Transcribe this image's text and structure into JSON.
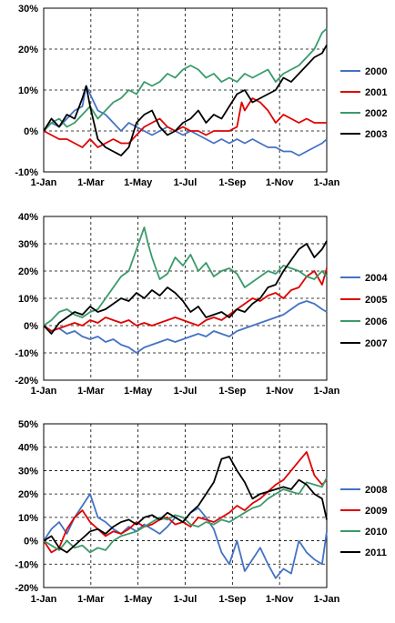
{
  "chart_data": [
    {
      "type": "line",
      "x_ticks": [
        "1-Jan",
        "1-Mar",
        "1-May",
        "1-Jul",
        "1-Sep",
        "1-Nov",
        "1-Jan"
      ],
      "y_ticks": [
        "-10%",
        "0%",
        "10%",
        "20%",
        "30%"
      ],
      "ylim": [
        -10,
        30
      ],
      "grid": true,
      "legend_position": "right",
      "series": [
        {
          "name": "2000",
          "color": "#4472C4",
          "x": [
            0,
            10,
            20,
            30,
            40,
            50,
            55,
            60,
            70,
            80,
            90,
            100,
            110,
            120,
            130,
            140,
            150,
            160,
            170,
            180,
            190,
            200,
            210,
            220,
            230,
            240,
            250,
            260,
            270,
            280,
            290,
            300,
            310,
            320,
            330,
            340,
            350,
            360,
            366
          ],
          "y": [
            0,
            2,
            1,
            3,
            5,
            6,
            11,
            9,
            5,
            4,
            2,
            0,
            2,
            1,
            0,
            -1,
            0,
            1,
            0,
            -1,
            0,
            -1,
            -2,
            -3,
            -2,
            -3,
            -2,
            -3,
            -2,
            -3,
            -4,
            -4,
            -5,
            -5,
            -6,
            -5,
            -4,
            -3,
            -2
          ]
        },
        {
          "name": "2001",
          "color": "#E00000",
          "x": [
            0,
            10,
            20,
            30,
            40,
            50,
            60,
            70,
            80,
            90,
            100,
            110,
            120,
            130,
            140,
            150,
            160,
            170,
            180,
            190,
            200,
            210,
            220,
            230,
            240,
            250,
            256,
            260,
            270,
            280,
            290,
            300,
            310,
            320,
            330,
            340,
            350,
            360,
            366
          ],
          "y": [
            0,
            -1,
            -2,
            -2,
            -3,
            -4,
            -2,
            -4,
            -3,
            -2,
            -3,
            -3,
            -1,
            1,
            2,
            3,
            1,
            0,
            1,
            0,
            0,
            -1,
            0,
            0,
            0,
            1,
            7,
            5,
            8,
            7,
            5,
            2,
            4,
            3,
            2,
            3,
            2,
            2,
            2
          ]
        },
        {
          "name": "2002",
          "color": "#3A9A6A",
          "x": [
            0,
            10,
            20,
            30,
            40,
            50,
            60,
            70,
            80,
            90,
            100,
            110,
            120,
            130,
            140,
            150,
            160,
            170,
            180,
            190,
            200,
            210,
            220,
            230,
            240,
            250,
            260,
            270,
            280,
            290,
            300,
            310,
            320,
            330,
            340,
            350,
            360,
            366
          ],
          "y": [
            0,
            2,
            3,
            1,
            2,
            4,
            6,
            3,
            5,
            7,
            8,
            10,
            9,
            12,
            11,
            12,
            14,
            13,
            15,
            16,
            15,
            13,
            14,
            12,
            13,
            12,
            14,
            13,
            14,
            15,
            12,
            14,
            15,
            16,
            18,
            20,
            24,
            25
          ]
        },
        {
          "name": "2003",
          "color": "#000000",
          "x": [
            0,
            10,
            20,
            30,
            40,
            50,
            55,
            60,
            70,
            80,
            90,
            100,
            110,
            120,
            130,
            140,
            150,
            160,
            170,
            180,
            190,
            200,
            210,
            220,
            230,
            240,
            250,
            260,
            270,
            280,
            290,
            300,
            310,
            320,
            330,
            340,
            350,
            360,
            366
          ],
          "y": [
            0,
            3,
            1,
            4,
            3,
            8,
            11,
            6,
            -2,
            -4,
            -5,
            -6,
            -4,
            2,
            4,
            5,
            1,
            -1,
            0,
            2,
            3,
            5,
            2,
            4,
            3,
            6,
            9,
            10,
            7,
            8,
            9,
            10,
            13,
            12,
            14,
            16,
            18,
            19,
            21
          ]
        }
      ]
    },
    {
      "type": "line",
      "x_ticks": [
        "1-Jan",
        "1-Mar",
        "1-May",
        "1-Jul",
        "1-Sep",
        "1-Nov",
        "1-Jan"
      ],
      "y_ticks": [
        "-20%",
        "-10%",
        "0%",
        "10%",
        "20%",
        "30%",
        "40%"
      ],
      "ylim": [
        -20,
        40
      ],
      "grid": true,
      "legend_position": "right",
      "series": [
        {
          "name": "2004",
          "color": "#4472C4",
          "x": [
            0,
            10,
            20,
            30,
            40,
            50,
            60,
            70,
            80,
            90,
            100,
            110,
            120,
            130,
            140,
            150,
            160,
            170,
            180,
            190,
            200,
            210,
            220,
            230,
            240,
            250,
            260,
            270,
            280,
            290,
            300,
            310,
            320,
            330,
            340,
            350,
            360,
            366
          ],
          "y": [
            0,
            -2,
            -1,
            -3,
            -2,
            -4,
            -5,
            -4,
            -6,
            -5,
            -7,
            -8,
            -10,
            -8,
            -7,
            -6,
            -5,
            -6,
            -5,
            -4,
            -3,
            -4,
            -2,
            -3,
            -4,
            -2,
            -1,
            0,
            1,
            2,
            3,
            4,
            6,
            8,
            9,
            8,
            6,
            5
          ]
        },
        {
          "name": "2005",
          "color": "#E00000",
          "x": [
            0,
            10,
            20,
            30,
            40,
            50,
            60,
            70,
            80,
            90,
            100,
            110,
            120,
            130,
            140,
            150,
            160,
            170,
            180,
            190,
            200,
            210,
            220,
            230,
            240,
            250,
            260,
            270,
            280,
            290,
            300,
            310,
            320,
            330,
            340,
            350,
            360,
            366
          ],
          "y": [
            0,
            -2,
            -1,
            0,
            1,
            0,
            2,
            1,
            3,
            2,
            1,
            2,
            0,
            1,
            0,
            1,
            2,
            3,
            2,
            1,
            0,
            2,
            3,
            2,
            4,
            6,
            8,
            10,
            9,
            11,
            12,
            10,
            13,
            14,
            18,
            20,
            15,
            21
          ]
        },
        {
          "name": "2006",
          "color": "#3A9A6A",
          "x": [
            0,
            10,
            20,
            30,
            40,
            50,
            60,
            70,
            80,
            90,
            100,
            110,
            120,
            130,
            135,
            140,
            150,
            160,
            170,
            180,
            190,
            200,
            210,
            220,
            230,
            240,
            250,
            260,
            270,
            280,
            290,
            300,
            310,
            320,
            330,
            340,
            350,
            360,
            366
          ],
          "y": [
            0,
            2,
            5,
            6,
            4,
            3,
            5,
            6,
            10,
            14,
            18,
            20,
            28,
            36,
            30,
            25,
            17,
            19,
            25,
            22,
            26,
            20,
            23,
            18,
            20,
            21,
            19,
            14,
            16,
            18,
            20,
            19,
            22,
            21,
            20,
            18,
            17,
            20,
            18
          ]
        },
        {
          "name": "2007",
          "color": "#000000",
          "x": [
            0,
            10,
            20,
            30,
            40,
            50,
            60,
            70,
            80,
            90,
            100,
            110,
            120,
            130,
            140,
            150,
            160,
            170,
            180,
            190,
            200,
            210,
            220,
            230,
            240,
            250,
            260,
            270,
            280,
            290,
            300,
            310,
            320,
            330,
            340,
            350,
            360,
            366
          ],
          "y": [
            0,
            -3,
            1,
            3,
            5,
            4,
            7,
            5,
            6,
            8,
            10,
            9,
            12,
            10,
            13,
            11,
            14,
            12,
            9,
            5,
            7,
            3,
            4,
            5,
            3,
            6,
            5,
            8,
            10,
            14,
            15,
            20,
            24,
            28,
            30,
            25,
            28,
            31
          ]
        }
      ]
    },
    {
      "type": "line",
      "x_ticks": [
        "1-Jan",
        "1-Mar",
        "1-May",
        "1-Jul",
        "1-Sep",
        "1-Nov",
        "1-Jan"
      ],
      "y_ticks": [
        "-20%",
        "-10%",
        "0%",
        "10%",
        "20%",
        "30%",
        "40%",
        "50%"
      ],
      "ylim": [
        -20,
        50
      ],
      "grid": true,
      "legend_position": "right",
      "series": [
        {
          "name": "2008",
          "color": "#4472C4",
          "x": [
            0,
            10,
            20,
            30,
            40,
            50,
            60,
            70,
            80,
            90,
            100,
            110,
            120,
            130,
            140,
            150,
            160,
            170,
            180,
            190,
            200,
            210,
            220,
            230,
            240,
            250,
            260,
            270,
            280,
            290,
            300,
            310,
            320,
            330,
            340,
            350,
            360,
            366
          ],
          "y": [
            0,
            5,
            8,
            3,
            10,
            15,
            20,
            10,
            8,
            5,
            3,
            6,
            4,
            7,
            5,
            3,
            6,
            10,
            8,
            12,
            14,
            10,
            5,
            -5,
            -10,
            0,
            -13,
            -8,
            -3,
            -10,
            -16,
            -12,
            -14,
            0,
            -5,
            -8,
            -10,
            4
          ]
        },
        {
          "name": "2009",
          "color": "#E00000",
          "x": [
            0,
            10,
            20,
            30,
            40,
            50,
            60,
            70,
            80,
            90,
            100,
            110,
            120,
            130,
            140,
            150,
            160,
            170,
            180,
            190,
            200,
            210,
            220,
            230,
            240,
            250,
            260,
            270,
            280,
            290,
            300,
            310,
            320,
            330,
            340,
            350,
            360,
            366
          ],
          "y": [
            0,
            -5,
            -3,
            5,
            10,
            13,
            8,
            5,
            2,
            4,
            3,
            5,
            8,
            6,
            7,
            9,
            10,
            7,
            8,
            6,
            10,
            9,
            8,
            10,
            12,
            15,
            13,
            16,
            18,
            21,
            24,
            26,
            30,
            34,
            38,
            28,
            24,
            26
          ]
        },
        {
          "name": "2010",
          "color": "#3A9A6A",
          "x": [
            0,
            10,
            20,
            30,
            40,
            50,
            60,
            70,
            80,
            90,
            100,
            110,
            120,
            130,
            140,
            150,
            160,
            170,
            180,
            190,
            200,
            210,
            220,
            230,
            240,
            250,
            260,
            270,
            280,
            290,
            300,
            310,
            320,
            330,
            340,
            350,
            360,
            366
          ],
          "y": [
            0,
            -2,
            -4,
            0,
            -3,
            -2,
            -5,
            -3,
            -4,
            0,
            2,
            3,
            4,
            6,
            8,
            10,
            9,
            11,
            10,
            7,
            6,
            8,
            7,
            9,
            8,
            10,
            12,
            14,
            15,
            18,
            20,
            22,
            21,
            20,
            25,
            24,
            23,
            27
          ]
        },
        {
          "name": "2011",
          "color": "#000000",
          "x": [
            0,
            10,
            20,
            30,
            40,
            50,
            60,
            70,
            80,
            90,
            100,
            110,
            120,
            130,
            140,
            150,
            160,
            170,
            180,
            190,
            200,
            210,
            220,
            230,
            240,
            250,
            260,
            270,
            280,
            290,
            300,
            310,
            320,
            330,
            340,
            350,
            360,
            366
          ],
          "y": [
            0,
            2,
            -3,
            -5,
            -2,
            1,
            4,
            5,
            3,
            6,
            8,
            9,
            7,
            10,
            11,
            9,
            12,
            10,
            8,
            12,
            15,
            20,
            25,
            35,
            36,
            30,
            25,
            18,
            20,
            21,
            22,
            23,
            22,
            26,
            24,
            20,
            18,
            9
          ]
        }
      ]
    }
  ]
}
